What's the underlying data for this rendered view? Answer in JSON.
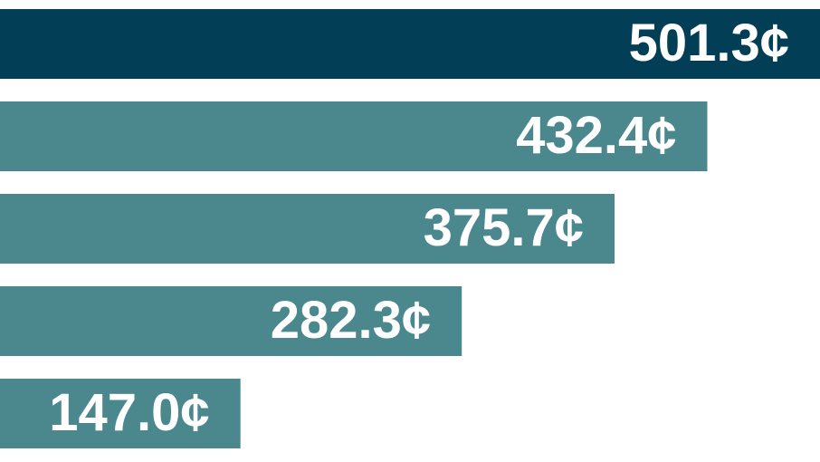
{
  "chart_data": {
    "type": "bar",
    "orientation": "horizontal",
    "categories": [
      null,
      null,
      null,
      null,
      null
    ],
    "values": [
      501.3,
      432.4,
      375.7,
      282.3,
      147.0
    ],
    "value_labels": [
      "501.3¢",
      "432.4¢",
      "375.7¢",
      "282.3¢",
      "147.0¢"
    ],
    "colors": [
      "#023e55",
      "#4a888d",
      "#4a888d",
      "#4a888d",
      "#4a888d"
    ]
  }
}
